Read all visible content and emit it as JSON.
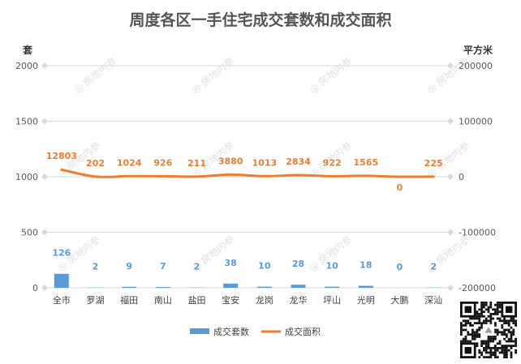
{
  "chart_data": {
    "type": "bar",
    "title": "周度各区一手住宅成交套数和成交面积",
    "y_left_unit": "套",
    "y_right_unit": "平方米",
    "y_left_ticks": [
      "2000",
      "1500",
      "1000",
      "500",
      "0"
    ],
    "y_right_ticks": [
      "200000",
      "100000",
      "0",
      "-100000",
      "-200000"
    ],
    "ylim_left": [
      0,
      2000
    ],
    "ylim_right": [
      -200000,
      200000
    ],
    "categories": [
      "全市",
      "罗湖",
      "福田",
      "南山",
      "盐田",
      "宝安",
      "龙岗",
      "龙华",
      "坪山",
      "光明",
      "大鹏",
      "深汕"
    ],
    "series": [
      {
        "name": "成交套数",
        "type": "bar",
        "axis": "left",
        "color": "#5b9bd5",
        "values": [
          126,
          2,
          9,
          7,
          2,
          38,
          10,
          28,
          10,
          18,
          0,
          2
        ],
        "labels": [
          "126",
          "2",
          "9",
          "7",
          "2",
          "38",
          "10",
          "28",
          "10",
          "18",
          "0",
          "2"
        ]
      },
      {
        "name": "成交面积",
        "type": "line",
        "axis": "right",
        "color": "#ed7d31",
        "values": [
          12803,
          202,
          1024,
          926,
          211,
          3880,
          1013,
          2834,
          922,
          1565,
          0,
          225
        ],
        "labels": [
          "12803",
          "202",
          "1024",
          "926",
          "211",
          "3880",
          "1013",
          "2834",
          "922",
          "1565",
          "0",
          "225"
        ]
      }
    ],
    "grid": true,
    "legend": "bottom"
  },
  "watermark": {
    "text": "房地内参"
  }
}
